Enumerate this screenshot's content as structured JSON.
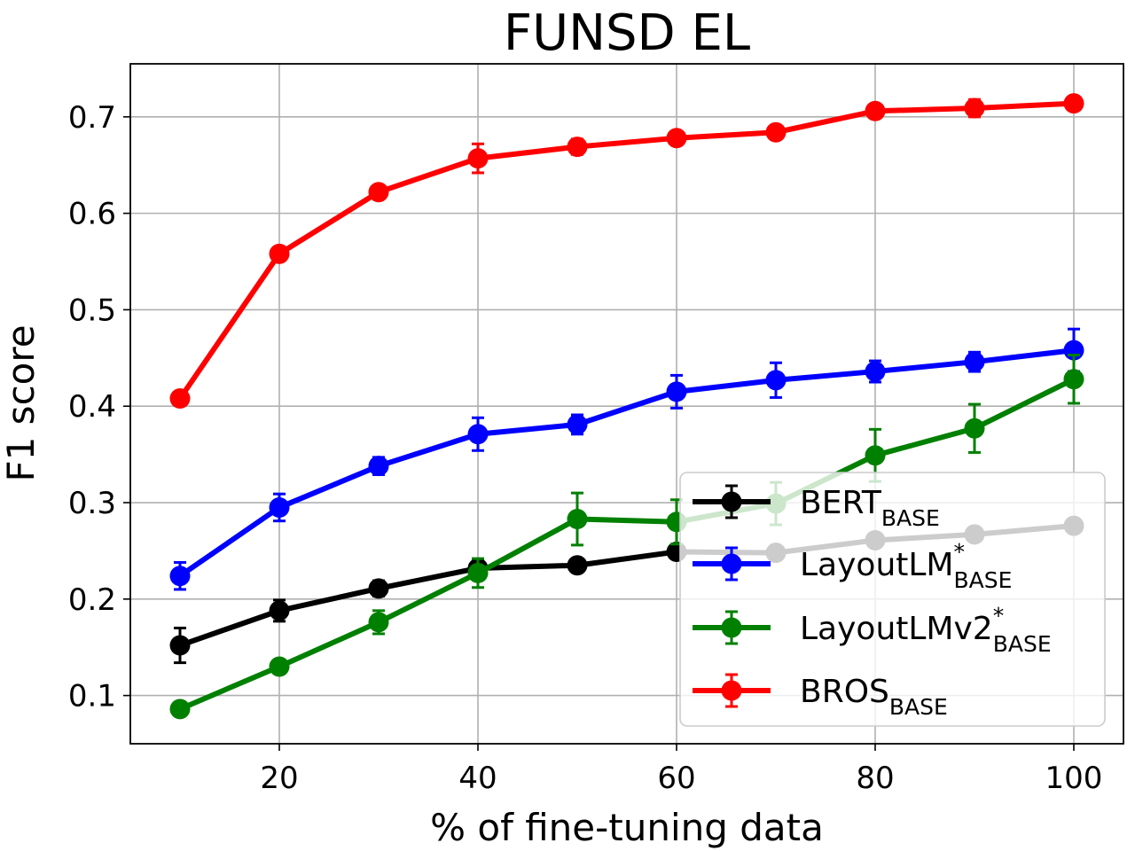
{
  "chart_data": {
    "type": "line",
    "title": "FUNSD EL",
    "xlabel": "% of fine-tuning data",
    "ylabel": "F1 score",
    "xlim": [
      5,
      105
    ],
    "ylim": [
      0.05,
      0.755
    ],
    "xticks": [
      20,
      40,
      60,
      80,
      100
    ],
    "yticks": [
      0.1,
      0.2,
      0.3,
      0.4,
      0.5,
      0.6,
      0.7
    ],
    "grid": true,
    "legend_position": "lower-right",
    "x": [
      10,
      20,
      30,
      40,
      50,
      60,
      70,
      80,
      90,
      100
    ],
    "series": [
      {
        "name": "BERT",
        "name_sub": "BASE",
        "name_sup": "",
        "color": "#000000",
        "values": [
          0.152,
          0.188,
          0.211,
          0.232,
          0.235,
          0.249,
          0.248,
          0.261,
          0.267,
          0.276
        ],
        "errors": [
          0.018,
          0.011,
          0.008,
          0.009,
          0.006,
          0.007,
          0.006,
          0.006,
          0.007,
          0.007
        ]
      },
      {
        "name": "LayoutLM",
        "name_sub": "BASE",
        "name_sup": "*",
        "color": "#0000ff",
        "values": [
          0.224,
          0.295,
          0.338,
          0.371,
          0.381,
          0.415,
          0.427,
          0.436,
          0.446,
          0.458
        ],
        "errors": [
          0.014,
          0.014,
          0.009,
          0.017,
          0.01,
          0.017,
          0.018,
          0.011,
          0.01,
          0.022
        ]
      },
      {
        "name": "LayoutLMv2",
        "name_sub": "BASE",
        "name_sup": "*",
        "color": "#008000",
        "values": [
          0.086,
          0.13,
          0.176,
          0.227,
          0.283,
          0.28,
          0.299,
          0.349,
          0.377,
          0.428
        ],
        "errors": [
          0.005,
          0.006,
          0.012,
          0.015,
          0.027,
          0.023,
          0.022,
          0.027,
          0.025,
          0.025
        ]
      },
      {
        "name": "BROS",
        "name_sub": "BASE",
        "name_sup": "",
        "color": "#ff0000",
        "values": [
          0.408,
          0.558,
          0.622,
          0.657,
          0.669,
          0.678,
          0.684,
          0.706,
          0.709,
          0.714
        ],
        "errors": [
          0.004,
          0.005,
          0.005,
          0.015,
          0.008,
          0.006,
          0.006,
          0.006,
          0.009,
          0.006
        ]
      }
    ]
  }
}
